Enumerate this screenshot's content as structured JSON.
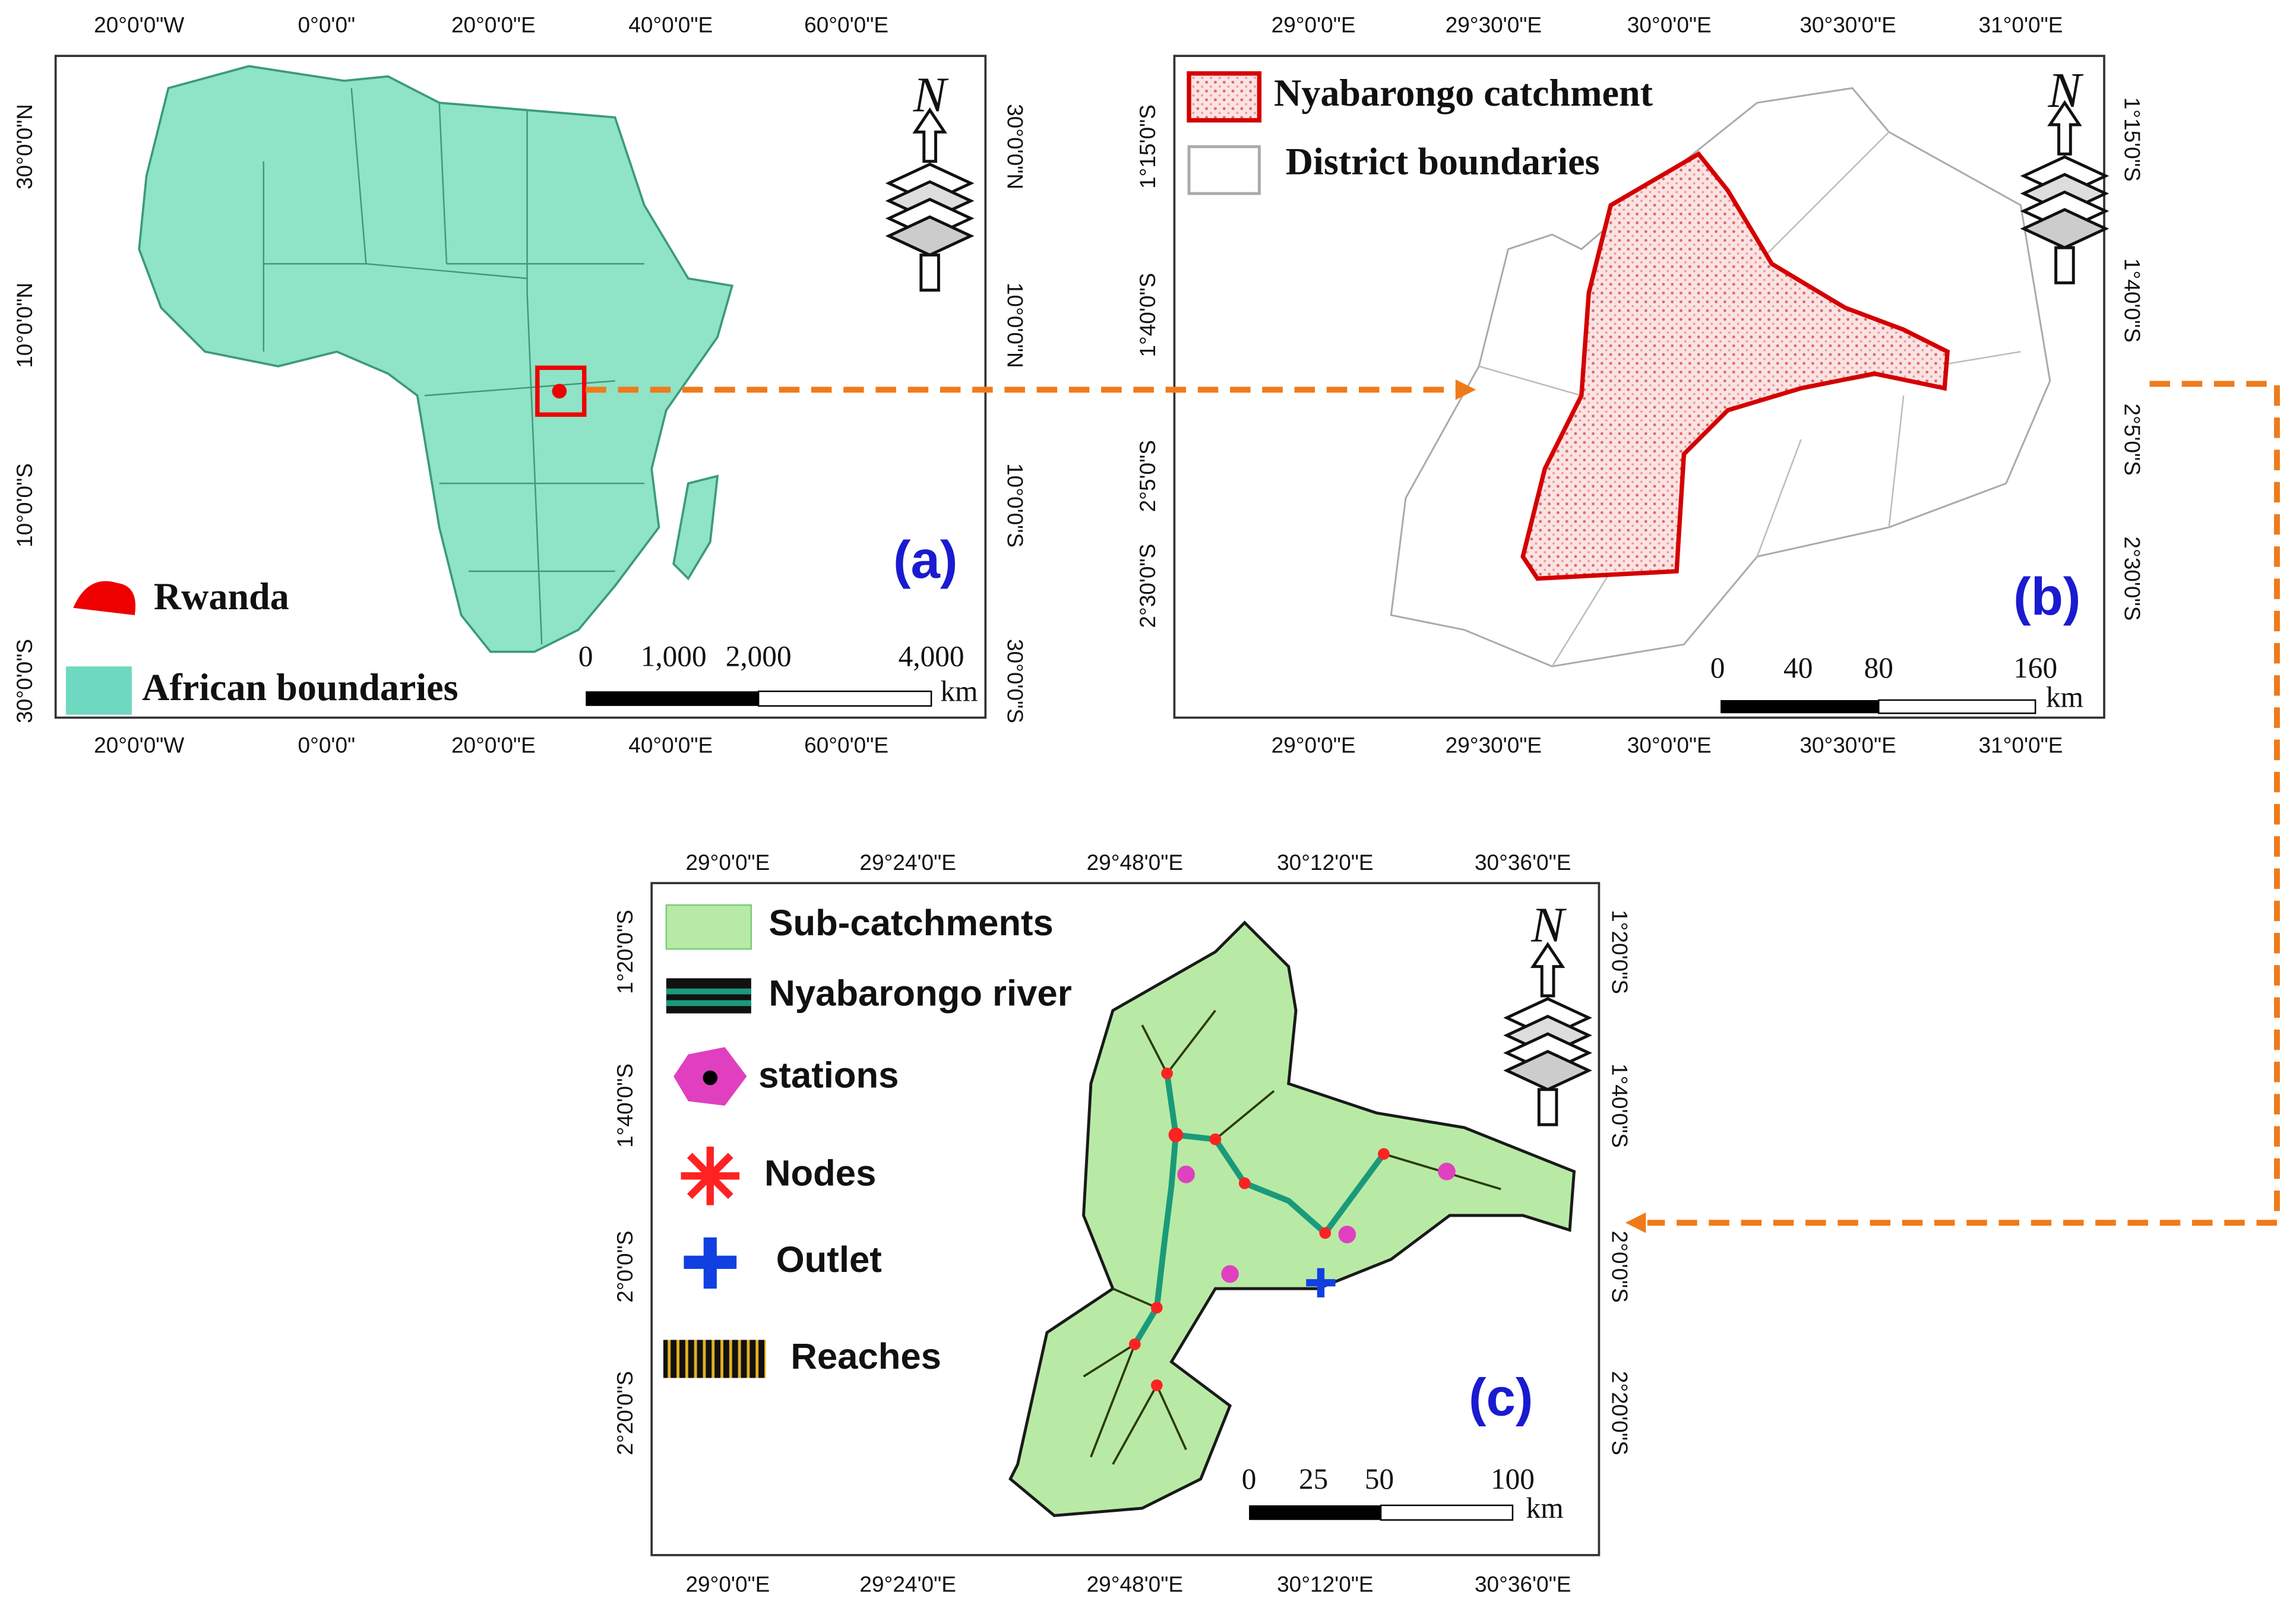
{
  "panel_a": {
    "label": "(a)",
    "north": "N",
    "x_labels_top": [
      "20°0'0\"W",
      "0°0'0\"",
      "20°0'0\"E",
      "40°0'0\"E",
      "60°0'0\"E"
    ],
    "x_labels_bottom": [
      "20°0'0\"W",
      "0°0'0\"",
      "20°0'0\"E",
      "40°0'0\"E",
      "60°0'0\"E"
    ],
    "y_labels_left": [
      "30°0'0\"N",
      "10°0'0\"N",
      "10°0'0\"S",
      "30°0'0\"S"
    ],
    "y_labels_right": [
      "30°0'0\"N",
      "10°0'0\"N",
      "10°0'0\"S",
      "30°0'0\"S"
    ],
    "legend": [
      "Rwanda",
      "African boundaries"
    ],
    "scale": {
      "ticks": [
        "0",
        "1,000",
        "2,000",
        "4,000"
      ],
      "unit": "km"
    }
  },
  "panel_b": {
    "label": "(b)",
    "north": "N",
    "x_labels_top": [
      "29°0'0\"E",
      "29°30'0\"E",
      "30°0'0\"E",
      "30°30'0\"E",
      "31°0'0\"E"
    ],
    "x_labels_bottom": [
      "29°0'0\"E",
      "29°30'0\"E",
      "30°0'0\"E",
      "30°30'0\"E",
      "31°0'0\"E"
    ],
    "y_labels_left": [
      "1°15'0\"S",
      "1°40'0\"S",
      "2°5'0\"S",
      "2°30'0\"S"
    ],
    "y_labels_right": [
      "1°15'0\"S",
      "1°40'0\"S",
      "2°5'0\"S",
      "2°30'0\"S"
    ],
    "legend": [
      "Nyabarongo catchment",
      "District boundaries"
    ],
    "scale": {
      "ticks": [
        "0",
        "40",
        "80",
        "160"
      ],
      "unit": "km"
    }
  },
  "panel_c": {
    "label": "(c)",
    "north": "N",
    "x_labels_top": [
      "29°0'0\"E",
      "29°24'0\"E",
      "29°48'0\"E",
      "30°12'0\"E",
      "30°36'0\"E"
    ],
    "x_labels_bottom": [
      "29°0'0\"E",
      "29°24'0\"E",
      "29°48'0\"E",
      "30°12'0\"E",
      "30°36'0\"E"
    ],
    "y_labels_left": [
      "1°20'0\"S",
      "1°40'0\"S",
      "2°0'0\"S",
      "2°20'0\"S"
    ],
    "y_labels_right": [
      "1°20'0\"S",
      "1°40'0\"S",
      "2°0'0\"S",
      "2°20'0\"S"
    ],
    "legend": [
      "Sub-catchments",
      "Nyabarongo river",
      "stations",
      "Nodes",
      "Outlet",
      "Reaches"
    ],
    "scale": {
      "ticks": [
        "0",
        "25",
        "50",
        "100"
      ],
      "unit": "km"
    }
  }
}
